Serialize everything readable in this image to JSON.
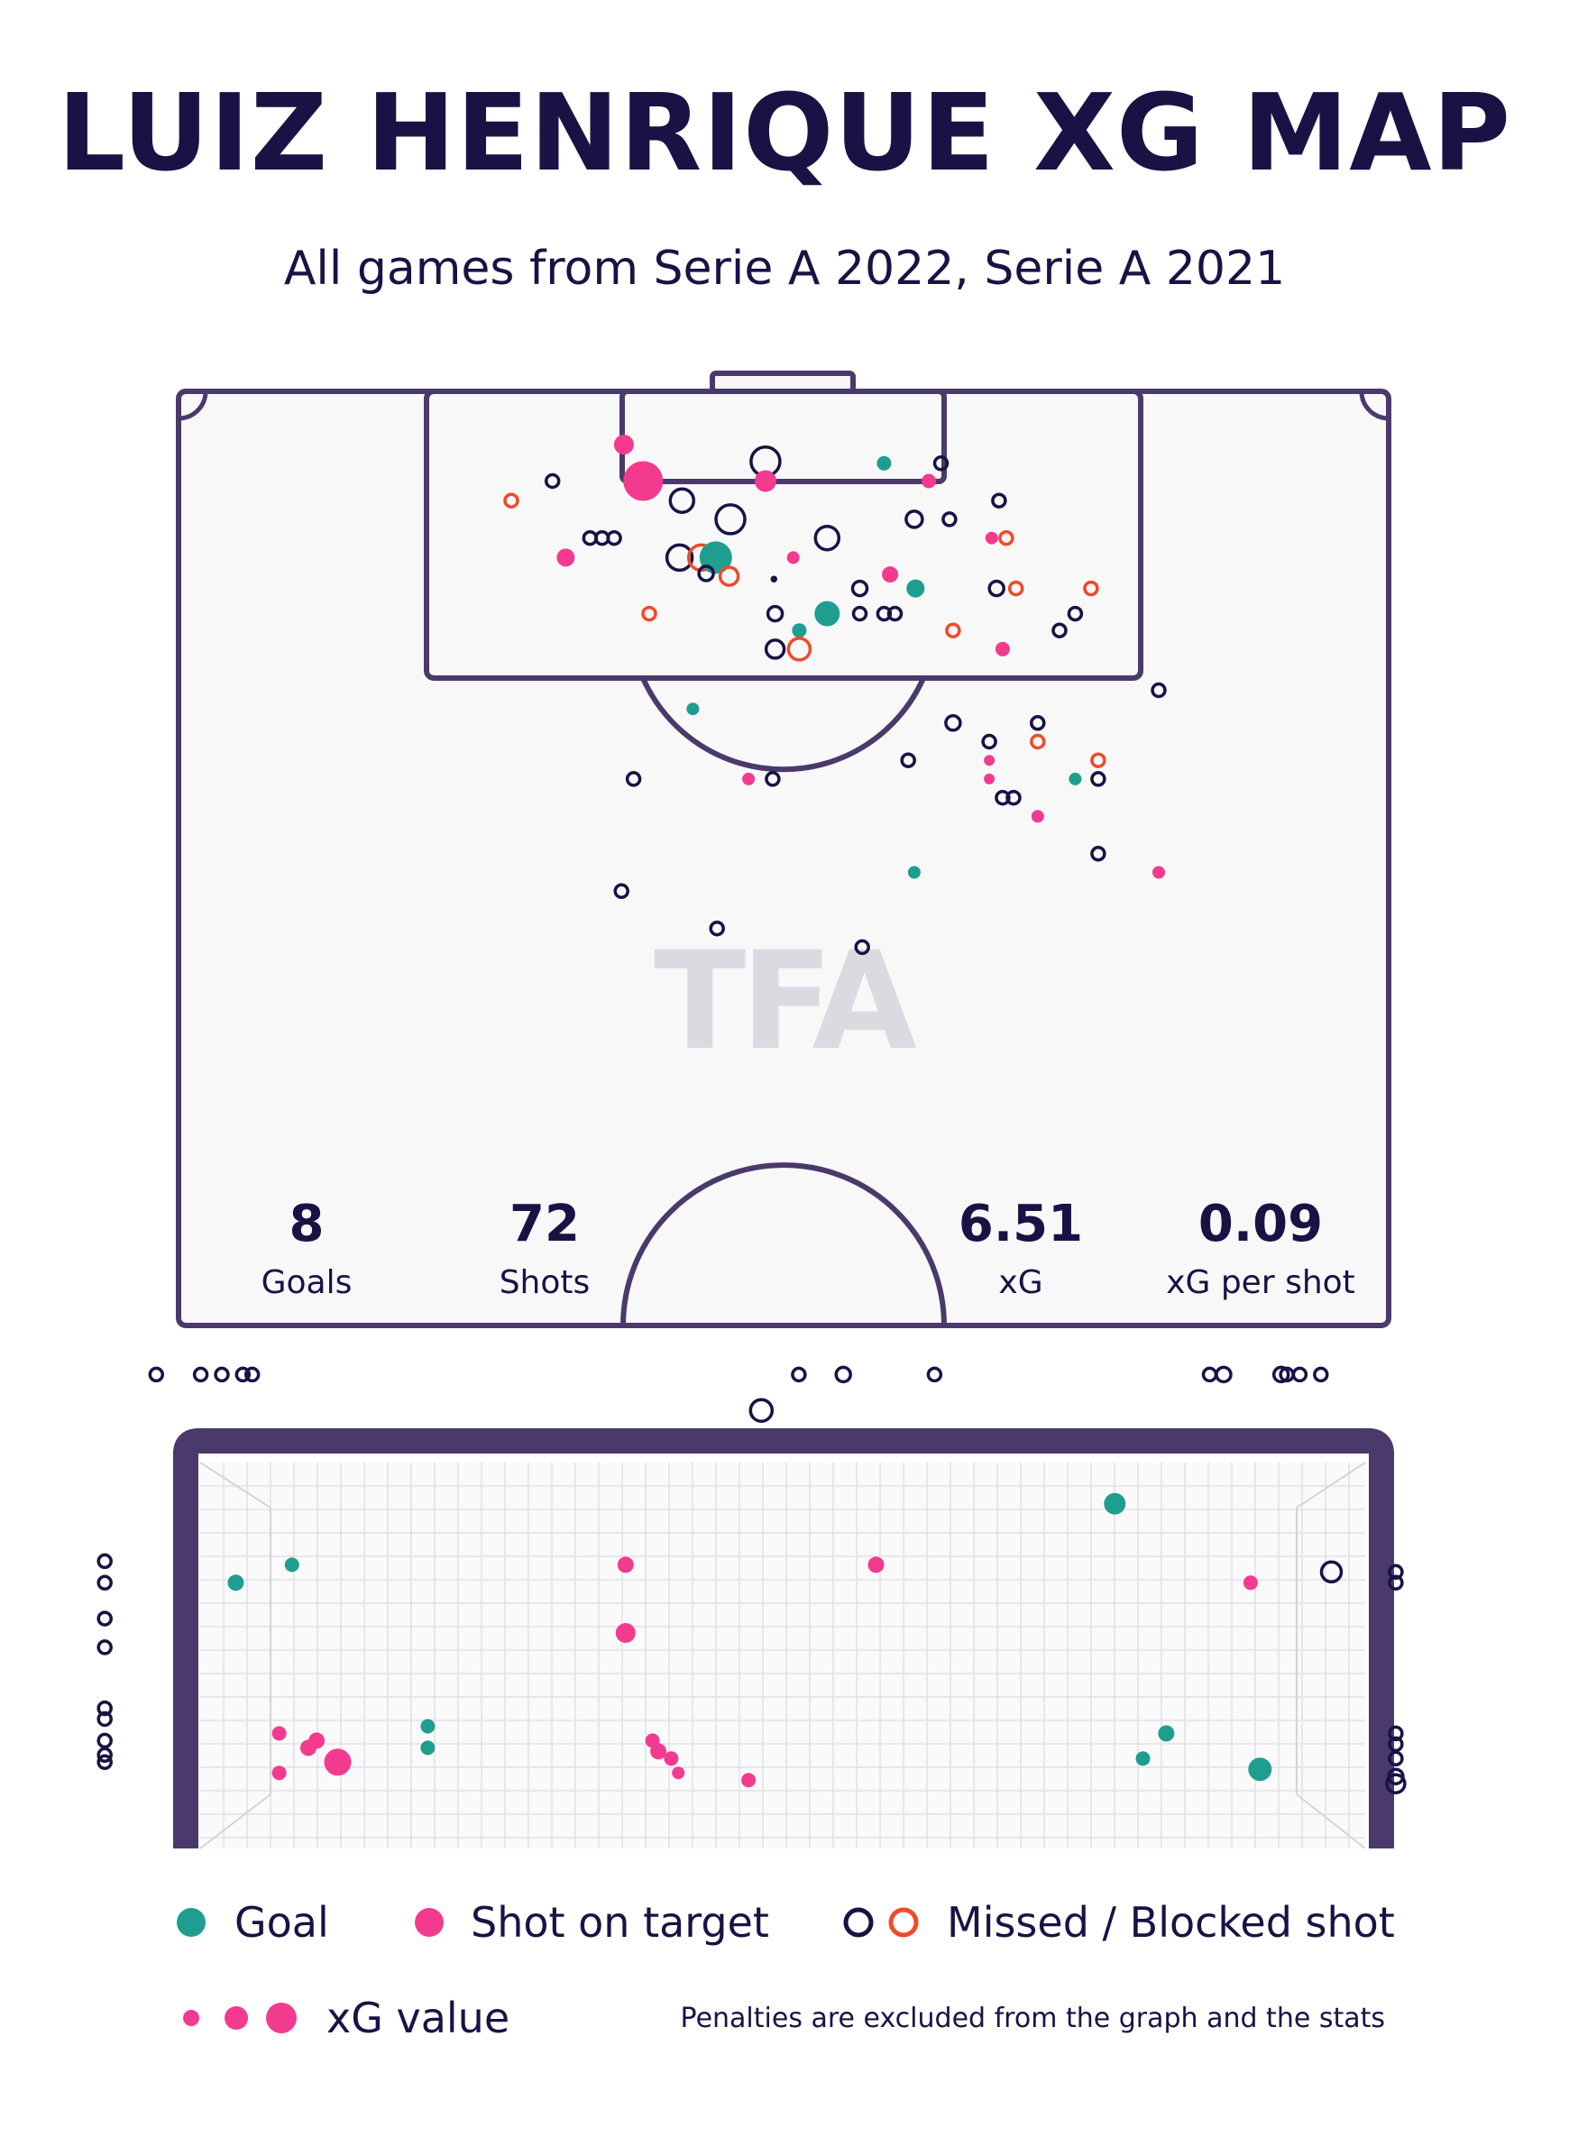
{
  "title": "LUIZ HENRIQUE XG MAP",
  "subtitle": "All games from Serie A 2022, Serie A 2021",
  "watermark": "TFA",
  "stats": [
    {
      "value": "8",
      "label": "Goals"
    },
    {
      "value": "72",
      "label": "Shots"
    },
    {
      "value": "6.51",
      "label": "xG"
    },
    {
      "value": "0.09",
      "label": "xG per shot"
    }
  ],
  "legend": {
    "goal": "Goal",
    "on_target": "Shot on target",
    "missed": "Missed / Blocked shot",
    "xg": "xG value"
  },
  "note": "Penalties are excluded from the graph and the stats",
  "colors": {
    "goal": "#1f9e8f",
    "on_target": "#f23b8f",
    "missed": "#1a1245",
    "blocked": "#f04a2a",
    "pitch_line": "#4a3a6b",
    "pitch_fill": "#f8f8f9",
    "net_grid": "#e2e0e6",
    "goal_frame": "#4a3a6b"
  },
  "chart_data": [
    {
      "type": "scatter",
      "name": "pitch-shot-map",
      "note_units": "x: 0 = left touchline, 100 = right touchline; y: 0 = goal line, 100 = halfway line",
      "shots": [
        {
          "x": 36.8,
          "y": 5.7,
          "t": "on_target",
          "r": 11
        },
        {
          "x": 38.4,
          "y": 9.6,
          "t": "on_target",
          "r": 22
        },
        {
          "x": 48.5,
          "y": 7.5,
          "t": "missed",
          "r": 16
        },
        {
          "x": 48.5,
          "y": 9.6,
          "t": "on_target",
          "r": 12
        },
        {
          "x": 58.3,
          "y": 7.7,
          "t": "goal",
          "r": 8
        },
        {
          "x": 62.0,
          "y": 9.6,
          "t": "on_target",
          "r": 8
        },
        {
          "x": 63.0,
          "y": 7.7,
          "t": "missed",
          "r": 7
        },
        {
          "x": 30.9,
          "y": 9.6,
          "t": "missed",
          "r": 7
        },
        {
          "x": 27.5,
          "y": 11.7,
          "t": "blocked",
          "r": 7
        },
        {
          "x": 41.6,
          "y": 11.7,
          "t": "missed",
          "r": 13
        },
        {
          "x": 45.6,
          "y": 13.7,
          "t": "missed",
          "r": 16
        },
        {
          "x": 34.0,
          "y": 15.7,
          "t": "missed",
          "r": 7
        },
        {
          "x": 35.0,
          "y": 15.7,
          "t": "missed",
          "r": 7
        },
        {
          "x": 36.0,
          "y": 15.7,
          "t": "missed",
          "r": 7
        },
        {
          "x": 32.0,
          "y": 17.8,
          "t": "on_target",
          "r": 10
        },
        {
          "x": 41.4,
          "y": 17.8,
          "t": "missed",
          "r": 14
        },
        {
          "x": 43.2,
          "y": 17.8,
          "t": "blocked",
          "r": 14
        },
        {
          "x": 44.4,
          "y": 17.8,
          "t": "goal",
          "r": 18
        },
        {
          "x": 43.6,
          "y": 19.5,
          "t": "missed",
          "r": 8
        },
        {
          "x": 45.5,
          "y": 19.8,
          "t": "blocked",
          "r": 10
        },
        {
          "x": 53.6,
          "y": 15.7,
          "t": "missed",
          "r": 13
        },
        {
          "x": 60.8,
          "y": 13.7,
          "t": "missed",
          "r": 9
        },
        {
          "x": 63.7,
          "y": 13.7,
          "t": "missed",
          "r": 7
        },
        {
          "x": 67.8,
          "y": 11.7,
          "t": "missed",
          "r": 7
        },
        {
          "x": 67.2,
          "y": 15.7,
          "t": "on_target",
          "r": 7
        },
        {
          "x": 68.4,
          "y": 15.7,
          "t": "blocked",
          "r": 7
        },
        {
          "x": 50.8,
          "y": 17.8,
          "t": "on_target",
          "r": 7
        },
        {
          "x": 49.2,
          "y": 20.1,
          "t": "missed",
          "r": 2
        },
        {
          "x": 58.8,
          "y": 19.6,
          "t": "on_target",
          "r": 9
        },
        {
          "x": 60.9,
          "y": 21.1,
          "t": "goal",
          "r": 10
        },
        {
          "x": 56.3,
          "y": 21.1,
          "t": "missed",
          "r": 8
        },
        {
          "x": 67.6,
          "y": 21.1,
          "t": "missed",
          "r": 8
        },
        {
          "x": 69.2,
          "y": 21.1,
          "t": "blocked",
          "r": 7
        },
        {
          "x": 75.4,
          "y": 21.1,
          "t": "blocked",
          "r": 7
        },
        {
          "x": 38.9,
          "y": 23.8,
          "t": "blocked",
          "r": 7
        },
        {
          "x": 49.3,
          "y": 23.8,
          "t": "missed",
          "r": 8
        },
        {
          "x": 53.6,
          "y": 23.8,
          "t": "goal",
          "r": 14
        },
        {
          "x": 56.3,
          "y": 23.8,
          "t": "missed",
          "r": 7
        },
        {
          "x": 58.3,
          "y": 23.8,
          "t": "missed",
          "r": 7
        },
        {
          "x": 59.2,
          "y": 23.8,
          "t": "missed",
          "r": 7
        },
        {
          "x": 74.1,
          "y": 23.8,
          "t": "missed",
          "r": 7
        },
        {
          "x": 72.8,
          "y": 25.6,
          "t": "missed",
          "r": 7
        },
        {
          "x": 51.3,
          "y": 25.6,
          "t": "goal",
          "r": 8
        },
        {
          "x": 64.0,
          "y": 25.6,
          "t": "blocked",
          "r": 7
        },
        {
          "x": 49.3,
          "y": 27.6,
          "t": "missed",
          "r": 10
        },
        {
          "x": 51.3,
          "y": 27.6,
          "t": "blocked",
          "r": 12
        },
        {
          "x": 68.1,
          "y": 27.6,
          "t": "on_target",
          "r": 8
        },
        {
          "x": 81.0,
          "y": 32.0,
          "t": "missed",
          "r": 7
        },
        {
          "x": 42.5,
          "y": 34.0,
          "t": "goal",
          "r": 7
        },
        {
          "x": 64.0,
          "y": 35.5,
          "t": "missed",
          "r": 8
        },
        {
          "x": 71.0,
          "y": 35.5,
          "t": "missed",
          "r": 7
        },
        {
          "x": 67.0,
          "y": 37.5,
          "t": "missed",
          "r": 7
        },
        {
          "x": 71.0,
          "y": 37.5,
          "t": "blocked",
          "r": 7
        },
        {
          "x": 60.3,
          "y": 39.5,
          "t": "missed",
          "r": 7
        },
        {
          "x": 67.0,
          "y": 39.5,
          "t": "on_target",
          "r": 6
        },
        {
          "x": 76.0,
          "y": 39.5,
          "t": "blocked",
          "r": 7
        },
        {
          "x": 37.6,
          "y": 41.5,
          "t": "missed",
          "r": 7
        },
        {
          "x": 47.1,
          "y": 41.5,
          "t": "on_target",
          "r": 7
        },
        {
          "x": 49.1,
          "y": 41.5,
          "t": "missed",
          "r": 7
        },
        {
          "x": 67.0,
          "y": 41.5,
          "t": "on_target",
          "r": 6
        },
        {
          "x": 74.1,
          "y": 41.5,
          "t": "goal",
          "r": 7
        },
        {
          "x": 76.0,
          "y": 41.5,
          "t": "missed",
          "r": 7
        },
        {
          "x": 68.1,
          "y": 43.5,
          "t": "missed",
          "r": 7
        },
        {
          "x": 69.0,
          "y": 43.5,
          "t": "missed",
          "r": 7
        },
        {
          "x": 71.0,
          "y": 45.5,
          "t": "on_target",
          "r": 7
        },
        {
          "x": 76.0,
          "y": 49.5,
          "t": "missed",
          "r": 7
        },
        {
          "x": 60.8,
          "y": 51.5,
          "t": "goal",
          "r": 7
        },
        {
          "x": 81.0,
          "y": 51.5,
          "t": "on_target",
          "r": 7
        },
        {
          "x": 36.6,
          "y": 53.5,
          "t": "missed",
          "r": 7
        },
        {
          "x": 44.5,
          "y": 57.5,
          "t": "missed",
          "r": 7
        },
        {
          "x": 56.5,
          "y": 59.5,
          "t": "missed",
          "r": 7
        }
      ]
    },
    {
      "type": "scatter",
      "name": "goal-mouth-shot-map",
      "note_units": "x: 0 = left post, 100 = right post; y: 0 = ground, 100 = crossbar; values outside 0-100 lie off target",
      "shots": [
        {
          "x": -3.6,
          "y": 122.0,
          "t": "missed",
          "r": 7
        },
        {
          "x": 0.2,
          "y": 122.0,
          "t": "missed",
          "r": 7
        },
        {
          "x": 2.0,
          "y": 122.0,
          "t": "missed",
          "r": 7
        },
        {
          "x": 3.8,
          "y": 122.0,
          "t": "missed",
          "r": 7
        },
        {
          "x": 4.6,
          "y": 122.0,
          "t": "missed",
          "r": 7
        },
        {
          "x": 51.3,
          "y": 122.0,
          "t": "missed",
          "r": 7
        },
        {
          "x": 55.1,
          "y": 122.0,
          "t": "missed",
          "r": 8
        },
        {
          "x": 62.9,
          "y": 122.0,
          "t": "missed",
          "r": 7
        },
        {
          "x": 86.4,
          "y": 122.0,
          "t": "missed",
          "r": 7
        },
        {
          "x": 87.6,
          "y": 122.0,
          "t": "missed",
          "r": 8
        },
        {
          "x": 92.5,
          "y": 122.0,
          "t": "missed",
          "r": 8
        },
        {
          "x": 93.0,
          "y": 122.0,
          "t": "missed",
          "r": 7
        },
        {
          "x": 94.1,
          "y": 122.0,
          "t": "missed",
          "r": 7
        },
        {
          "x": 95.9,
          "y": 122.0,
          "t": "missed",
          "r": 7
        },
        {
          "x": 48.1,
          "y": 112.0,
          "t": "missed",
          "r": 12
        },
        {
          "x": -8.0,
          "y": 70.0,
          "t": "missed",
          "r": 7
        },
        {
          "x": -8.0,
          "y": 64.0,
          "t": "missed",
          "r": 7
        },
        {
          "x": -8.0,
          "y": 54.0,
          "t": "missed",
          "r": 7
        },
        {
          "x": -8.0,
          "y": 46.0,
          "t": "missed",
          "r": 7
        },
        {
          "x": -8.0,
          "y": 29.0,
          "t": "missed",
          "r": 7
        },
        {
          "x": -8.0,
          "y": 26.0,
          "t": "missed",
          "r": 7
        },
        {
          "x": -8.0,
          "y": 20.0,
          "t": "missed",
          "r": 7
        },
        {
          "x": -8.0,
          "y": 16.0,
          "t": "missed",
          "r": 7
        },
        {
          "x": -8.0,
          "y": 14.0,
          "t": "missed",
          "r": 7
        },
        {
          "x": 102.3,
          "y": 67.0,
          "t": "missed",
          "r": 7
        },
        {
          "x": 102.3,
          "y": 64.0,
          "t": "missed",
          "r": 7
        },
        {
          "x": 102.3,
          "y": 22.0,
          "t": "missed",
          "r": 7
        },
        {
          "x": 102.3,
          "y": 19.0,
          "t": "missed",
          "r": 7
        },
        {
          "x": 102.3,
          "y": 15.0,
          "t": "missed",
          "r": 7
        },
        {
          "x": 102.3,
          "y": 10.0,
          "t": "missed",
          "r": 8
        },
        {
          "x": 102.3,
          "y": 8.0,
          "t": "missed",
          "r": 10
        },
        {
          "x": 96.8,
          "y": 67.0,
          "t": "missed",
          "r": 11
        },
        {
          "x": 3.2,
          "y": 64.0,
          "t": "goal",
          "r": 9
        },
        {
          "x": 8.0,
          "y": 69.0,
          "t": "goal",
          "r": 8
        },
        {
          "x": 19.6,
          "y": 24.0,
          "t": "goal",
          "r": 8
        },
        {
          "x": 19.6,
          "y": 18.0,
          "t": "goal",
          "r": 8
        },
        {
          "x": 78.3,
          "y": 86.0,
          "t": "goal",
          "r": 12
        },
        {
          "x": 82.7,
          "y": 22.0,
          "t": "goal",
          "r": 9
        },
        {
          "x": 80.7,
          "y": 15.0,
          "t": "goal",
          "r": 8
        },
        {
          "x": 90.7,
          "y": 12.0,
          "t": "goal",
          "r": 13
        },
        {
          "x": 36.5,
          "y": 69.0,
          "t": "on_target",
          "r": 9
        },
        {
          "x": 36.5,
          "y": 50.0,
          "t": "on_target",
          "r": 11
        },
        {
          "x": 57.9,
          "y": 69.0,
          "t": "on_target",
          "r": 9
        },
        {
          "x": 89.9,
          "y": 64.0,
          "t": "on_target",
          "r": 8
        },
        {
          "x": 6.9,
          "y": 22.0,
          "t": "on_target",
          "r": 8
        },
        {
          "x": 10.1,
          "y": 20.0,
          "t": "on_target",
          "r": 9
        },
        {
          "x": 9.4,
          "y": 18.0,
          "t": "on_target",
          "r": 9
        },
        {
          "x": 11.9,
          "y": 14.0,
          "t": "on_target",
          "r": 15
        },
        {
          "x": 6.9,
          "y": 11.0,
          "t": "on_target",
          "r": 8
        },
        {
          "x": 38.8,
          "y": 20.0,
          "t": "on_target",
          "r": 8
        },
        {
          "x": 39.3,
          "y": 17.0,
          "t": "on_target",
          "r": 9
        },
        {
          "x": 40.4,
          "y": 15.0,
          "t": "on_target",
          "r": 8
        },
        {
          "x": 41.0,
          "y": 11.0,
          "t": "on_target",
          "r": 7
        },
        {
          "x": 47.0,
          "y": 9.0,
          "t": "on_target",
          "r": 8
        }
      ]
    }
  ]
}
